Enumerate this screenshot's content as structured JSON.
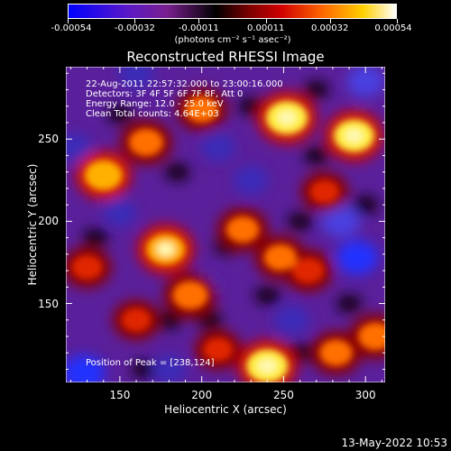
{
  "colorbar": {
    "tick_labels": [
      "-0.00054",
      "-0.00032",
      "-0.00011",
      "0.00011",
      "0.00032",
      "0.00054"
    ],
    "range": [
      -0.00054,
      0.00054
    ],
    "unit_label": "(photons cm⁻² s⁻¹ asec⁻²)",
    "colors": [
      "#0000ff",
      "#5a18c8",
      "#7a1f8f",
      "#000000",
      "#7a0000",
      "#d00000",
      "#ff6a00",
      "#ffd000",
      "#ffffff"
    ]
  },
  "annotations": {
    "time_range": "22-Aug-2011 22:57:32.000 to 23:00:16.000",
    "detectors": "Detectors: 3F 4F 5F 6F 7F 8F, Att 0",
    "energy": "Energy Range: 12.0 - 25.0 keV",
    "clean": "Clean      Total counts: 4.64E+03",
    "peak": "Position of Peak = [238,124]"
  },
  "footer": {
    "datestamp": "13-May-2022 10:53"
  },
  "chart_data": {
    "type": "heatmap",
    "title": "Reconstructed RHESSI Image",
    "xlabel": "Heliocentric X (arcsec)",
    "ylabel": "Heliocentric Y (arcsec)",
    "xlim": [
      117,
      312
    ],
    "ylim": [
      102,
      294
    ],
    "x_ticks": [
      150,
      200,
      250,
      300
    ],
    "y_ticks": [
      150,
      200,
      250
    ],
    "peak": [
      238,
      124
    ],
    "bright_sources": [
      {
        "x": 240,
        "y": 112,
        "level": 0.95
      },
      {
        "x": 252,
        "y": 263,
        "level": 0.95
      },
      {
        "x": 293,
        "y": 252,
        "level": 0.9
      },
      {
        "x": 178,
        "y": 183,
        "level": 0.85
      },
      {
        "x": 140,
        "y": 228,
        "level": 0.8
      },
      {
        "x": 166,
        "y": 248,
        "level": 0.65
      },
      {
        "x": 193,
        "y": 155,
        "level": 0.7
      },
      {
        "x": 225,
        "y": 195,
        "level": 0.6
      },
      {
        "x": 248,
        "y": 178,
        "level": 0.6
      },
      {
        "x": 265,
        "y": 170,
        "level": 0.55
      },
      {
        "x": 282,
        "y": 120,
        "level": 0.6
      },
      {
        "x": 306,
        "y": 130,
        "level": 0.65
      },
      {
        "x": 130,
        "y": 172,
        "level": 0.5
      },
      {
        "x": 200,
        "y": 268,
        "level": 0.6
      },
      {
        "x": 275,
        "y": 218,
        "level": 0.45
      },
      {
        "x": 160,
        "y": 140,
        "level": 0.45
      },
      {
        "x": 210,
        "y": 122,
        "level": 0.45
      }
    ],
    "dim_sources": [
      {
        "x": 128,
        "y": 108,
        "level": -0.95
      },
      {
        "x": 295,
        "y": 178,
        "level": -0.9
      },
      {
        "x": 285,
        "y": 200,
        "level": -0.75
      },
      {
        "x": 300,
        "y": 285,
        "level": -0.7
      },
      {
        "x": 200,
        "y": 160,
        "level": -0.6
      },
      {
        "x": 160,
        "y": 290,
        "level": -0.6
      },
      {
        "x": 255,
        "y": 140,
        "level": -0.55
      },
      {
        "x": 122,
        "y": 245,
        "level": -0.5
      },
      {
        "x": 230,
        "y": 225,
        "level": -0.55
      },
      {
        "x": 210,
        "y": 245,
        "level": -0.5
      },
      {
        "x": 150,
        "y": 205,
        "level": -0.45
      },
      {
        "x": 180,
        "y": 110,
        "level": -0.5
      }
    ]
  }
}
